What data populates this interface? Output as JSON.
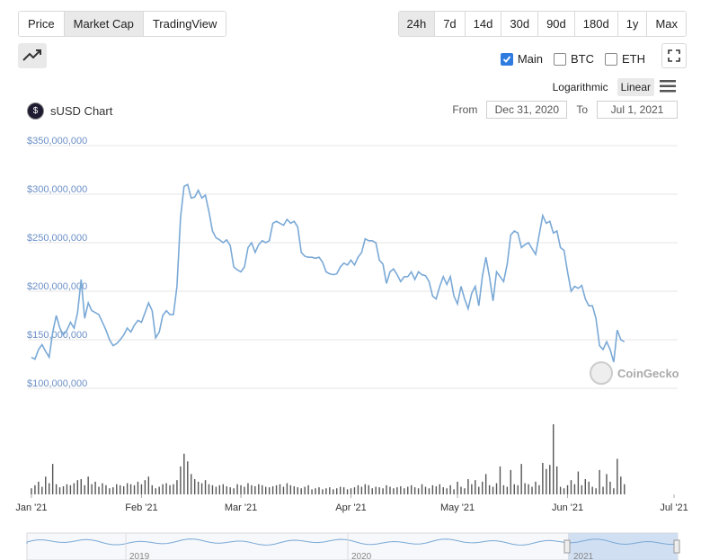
{
  "tabs": [
    "Price",
    "Market Cap",
    "TradingView"
  ],
  "active_tab": "Market Cap",
  "ranges": [
    "24h",
    "7d",
    "14d",
    "30d",
    "90d",
    "180d",
    "1y",
    "Max"
  ],
  "active_range": "24h",
  "series_toggles": [
    {
      "label": "Main",
      "checked": true
    },
    {
      "label": "BTC",
      "checked": false
    },
    {
      "label": "ETH",
      "checked": false
    }
  ],
  "scale": {
    "log": "Logarithmic",
    "linear": "Linear",
    "active": "Linear"
  },
  "chart_title": "sUSD Chart",
  "date_range": {
    "from_label": "From",
    "from": "Dec 31, 2020",
    "to_label": "To",
    "to": "Jul 1, 2021"
  },
  "watermark": "CoinGecko",
  "navigator_labels": [
    "2019",
    "2020",
    "2021"
  ],
  "icons": {
    "trend": "trend-line-icon",
    "expand": "expand-icon",
    "menu": "hamburger-menu-icon",
    "coin": "susd-coin-icon"
  },
  "colors": {
    "line": "#7aa9d6",
    "volume": "#555555",
    "axis_label": "#6b8fc7",
    "nav_selection": "#c8d8f0"
  },
  "chart_data": {
    "type": "line",
    "y_ticks": [
      "$350,000,000",
      "$300,000,000",
      "$250,000,000",
      "$200,000,000",
      "$150,000,000",
      "$100,000,000"
    ],
    "y_tick_values": [
      350000000,
      300000000,
      250000000,
      200000000,
      150000000,
      100000000
    ],
    "ylim": [
      100000000,
      350000000
    ],
    "x_ticks": [
      "Jan '21",
      "Feb '21",
      "Mar '21",
      "Apr '21",
      "May '21",
      "Jun '21",
      "Jul '21"
    ],
    "x_tick_days": [
      0,
      31,
      59,
      90,
      120,
      151,
      181
    ],
    "xlim": [
      -1,
      182
    ],
    "grid": true,
    "series": [
      {
        "values": [
          [
            0,
            132
          ],
          [
            1,
            130
          ],
          [
            2,
            140
          ],
          [
            3,
            145
          ],
          [
            4,
            138
          ],
          [
            5,
            132
          ],
          [
            6,
            158
          ],
          [
            7,
            175
          ],
          [
            8,
            162
          ],
          [
            9,
            155
          ],
          [
            10,
            160
          ],
          [
            11,
            168
          ],
          [
            12,
            162
          ],
          [
            13,
            178
          ],
          [
            14,
            212
          ],
          [
            15,
            172
          ],
          [
            16,
            188
          ],
          [
            17,
            180
          ],
          [
            18,
            178
          ],
          [
            19,
            176
          ],
          [
            20,
            168
          ],
          [
            21,
            160
          ],
          [
            22,
            150
          ],
          [
            23,
            144
          ],
          [
            24,
            146
          ],
          [
            25,
            150
          ],
          [
            26,
            155
          ],
          [
            27,
            162
          ],
          [
            28,
            158
          ],
          [
            29,
            165
          ],
          [
            30,
            170
          ],
          [
            31,
            168
          ],
          [
            32,
            178
          ],
          [
            33,
            188
          ],
          [
            34,
            180
          ],
          [
            35,
            152
          ],
          [
            36,
            158
          ],
          [
            37,
            175
          ],
          [
            38,
            180
          ],
          [
            39,
            176
          ],
          [
            40,
            176
          ],
          [
            41,
            205
          ],
          [
            42,
            276
          ],
          [
            43,
            308
          ],
          [
            44,
            310
          ],
          [
            45,
            296
          ],
          [
            46,
            297
          ],
          [
            47,
            304
          ],
          [
            48,
            296
          ],
          [
            49,
            299
          ],
          [
            50,
            282
          ],
          [
            51,
            262
          ],
          [
            52,
            255
          ],
          [
            53,
            253
          ],
          [
            54,
            250
          ],
          [
            55,
            253
          ],
          [
            56,
            247
          ],
          [
            57,
            225
          ],
          [
            58,
            222
          ],
          [
            59,
            220
          ],
          [
            60,
            225
          ],
          [
            61,
            245
          ],
          [
            62,
            250
          ],
          [
            63,
            240
          ],
          [
            64,
            248
          ],
          [
            65,
            252
          ],
          [
            66,
            250
          ],
          [
            67,
            252
          ],
          [
            68,
            270
          ],
          [
            69,
            272
          ],
          [
            70,
            270
          ],
          [
            71,
            268
          ],
          [
            72,
            274
          ],
          [
            73,
            270
          ],
          [
            74,
            272
          ],
          [
            75,
            266
          ],
          [
            76,
            240
          ],
          [
            77,
            236
          ],
          [
            78,
            235
          ],
          [
            79,
            235
          ],
          [
            80,
            234
          ],
          [
            81,
            235
          ],
          [
            82,
            230
          ],
          [
            83,
            220
          ],
          [
            84,
            218
          ],
          [
            85,
            217
          ],
          [
            86,
            218
          ],
          [
            87,
            225
          ],
          [
            88,
            229
          ],
          [
            89,
            227
          ],
          [
            90,
            232
          ],
          [
            91,
            227
          ],
          [
            92,
            235
          ],
          [
            93,
            240
          ],
          [
            94,
            254
          ],
          [
            95,
            252
          ],
          [
            96,
            252
          ],
          [
            97,
            250
          ],
          [
            98,
            232
          ],
          [
            99,
            228
          ],
          [
            100,
            208
          ],
          [
            101,
            220
          ],
          [
            102,
            223
          ],
          [
            103,
            217
          ],
          [
            104,
            210
          ],
          [
            105,
            215
          ],
          [
            106,
            215
          ],
          [
            107,
            220
          ],
          [
            108,
            212
          ],
          [
            109,
            220
          ],
          [
            110,
            217
          ],
          [
            111,
            216
          ],
          [
            112,
            210
          ],
          [
            113,
            195
          ],
          [
            114,
            192
          ],
          [
            115,
            205
          ],
          [
            116,
            215
          ],
          [
            117,
            207
          ],
          [
            118,
            215
          ],
          [
            119,
            195
          ],
          [
            120,
            187
          ],
          [
            121,
            205
          ],
          [
            122,
            192
          ],
          [
            123,
            182
          ],
          [
            124,
            198
          ],
          [
            125,
            205
          ],
          [
            126,
            185
          ],
          [
            127,
            215
          ],
          [
            128,
            235
          ],
          [
            129,
            215
          ],
          [
            130,
            190
          ],
          [
            131,
            220
          ],
          [
            132,
            215
          ],
          [
            133,
            210
          ],
          [
            134,
            228
          ],
          [
            135,
            258
          ],
          [
            136,
            262
          ],
          [
            137,
            260
          ],
          [
            138,
            245
          ],
          [
            139,
            248
          ],
          [
            140,
            250
          ],
          [
            141,
            244
          ],
          [
            142,
            238
          ],
          [
            143,
            258
          ],
          [
            144,
            278
          ],
          [
            145,
            270
          ],
          [
            146,
            272
          ],
          [
            147,
            260
          ],
          [
            148,
            262
          ],
          [
            149,
            245
          ],
          [
            150,
            242
          ],
          [
            151,
            220
          ],
          [
            152,
            200
          ],
          [
            153,
            205
          ],
          [
            154,
            203
          ],
          [
            155,
            206
          ],
          [
            156,
            192
          ],
          [
            157,
            185
          ],
          [
            158,
            185
          ],
          [
            159,
            172
          ],
          [
            160,
            144
          ],
          [
            161,
            140
          ],
          [
            162,
            148
          ],
          [
            163,
            140
          ],
          [
            164,
            127
          ],
          [
            165,
            160
          ],
          [
            166,
            150
          ],
          [
            167,
            148
          ]
        ]
      }
    ],
    "volume": [
      [
        0,
        12
      ],
      [
        1,
        18
      ],
      [
        2,
        25
      ],
      [
        3,
        15
      ],
      [
        4,
        35
      ],
      [
        5,
        22
      ],
      [
        6,
        60
      ],
      [
        7,
        20
      ],
      [
        8,
        14
      ],
      [
        9,
        16
      ],
      [
        10,
        20
      ],
      [
        11,
        18
      ],
      [
        12,
        22
      ],
      [
        13,
        28
      ],
      [
        14,
        30
      ],
      [
        15,
        18
      ],
      [
        16,
        35
      ],
      [
        17,
        20
      ],
      [
        18,
        25
      ],
      [
        19,
        15
      ],
      [
        20,
        22
      ],
      [
        21,
        18
      ],
      [
        22,
        12
      ],
      [
        23,
        14
      ],
      [
        24,
        20
      ],
      [
        25,
        18
      ],
      [
        26,
        16
      ],
      [
        27,
        22
      ],
      [
        28,
        20
      ],
      [
        29,
        18
      ],
      [
        30,
        25
      ],
      [
        31,
        20
      ],
      [
        32,
        28
      ],
      [
        33,
        35
      ],
      [
        34,
        18
      ],
      [
        35,
        12
      ],
      [
        36,
        15
      ],
      [
        37,
        20
      ],
      [
        38,
        22
      ],
      [
        39,
        18
      ],
      [
        40,
        20
      ],
      [
        41,
        28
      ],
      [
        42,
        55
      ],
      [
        43,
        80
      ],
      [
        44,
        65
      ],
      [
        45,
        40
      ],
      [
        46,
        30
      ],
      [
        47,
        25
      ],
      [
        48,
        22
      ],
      [
        49,
        28
      ],
      [
        50,
        20
      ],
      [
        51,
        18
      ],
      [
        52,
        15
      ],
      [
        53,
        18
      ],
      [
        54,
        20
      ],
      [
        55,
        16
      ],
      [
        56,
        14
      ],
      [
        57,
        12
      ],
      [
        58,
        20
      ],
      [
        59,
        18
      ],
      [
        60,
        15
      ],
      [
        61,
        22
      ],
      [
        62,
        18
      ],
      [
        63,
        16
      ],
      [
        64,
        20
      ],
      [
        65,
        18
      ],
      [
        66,
        15
      ],
      [
        67,
        14
      ],
      [
        68,
        16
      ],
      [
        69,
        18
      ],
      [
        70,
        20
      ],
      [
        71,
        15
      ],
      [
        72,
        22
      ],
      [
        73,
        18
      ],
      [
        74,
        16
      ],
      [
        75,
        14
      ],
      [
        76,
        12
      ],
      [
        77,
        15
      ],
      [
        78,
        18
      ],
      [
        79,
        10
      ],
      [
        80,
        12
      ],
      [
        81,
        14
      ],
      [
        82,
        10
      ],
      [
        83,
        12
      ],
      [
        84,
        14
      ],
      [
        85,
        10
      ],
      [
        86,
        12
      ],
      [
        87,
        15
      ],
      [
        88,
        14
      ],
      [
        89,
        10
      ],
      [
        90,
        12
      ],
      [
        91,
        14
      ],
      [
        92,
        18
      ],
      [
        93,
        15
      ],
      [
        94,
        20
      ],
      [
        95,
        18
      ],
      [
        96,
        12
      ],
      [
        97,
        15
      ],
      [
        98,
        14
      ],
      [
        99,
        12
      ],
      [
        100,
        18
      ],
      [
        101,
        15
      ],
      [
        102,
        12
      ],
      [
        103,
        14
      ],
      [
        104,
        16
      ],
      [
        105,
        12
      ],
      [
        106,
        15
      ],
      [
        107,
        18
      ],
      [
        108,
        14
      ],
      [
        109,
        12
      ],
      [
        110,
        20
      ],
      [
        111,
        15
      ],
      [
        112,
        12
      ],
      [
        113,
        18
      ],
      [
        114,
        16
      ],
      [
        115,
        20
      ],
      [
        116,
        14
      ],
      [
        117,
        12
      ],
      [
        118,
        18
      ],
      [
        119,
        10
      ],
      [
        120,
        25
      ],
      [
        121,
        15
      ],
      [
        122,
        12
      ],
      [
        123,
        30
      ],
      [
        124,
        20
      ],
      [
        125,
        28
      ],
      [
        126,
        15
      ],
      [
        127,
        25
      ],
      [
        128,
        40
      ],
      [
        129,
        18
      ],
      [
        130,
        15
      ],
      [
        131,
        22
      ],
      [
        132,
        55
      ],
      [
        133,
        18
      ],
      [
        134,
        15
      ],
      [
        135,
        48
      ],
      [
        136,
        20
      ],
      [
        137,
        18
      ],
      [
        138,
        60
      ],
      [
        139,
        22
      ],
      [
        140,
        20
      ],
      [
        141,
        15
      ],
      [
        142,
        25
      ],
      [
        143,
        18
      ],
      [
        144,
        62
      ],
      [
        145,
        50
      ],
      [
        146,
        58
      ],
      [
        147,
        138
      ],
      [
        148,
        55
      ],
      [
        149,
        15
      ],
      [
        150,
        12
      ],
      [
        151,
        18
      ],
      [
        152,
        28
      ],
      [
        153,
        20
      ],
      [
        154,
        45
      ],
      [
        155,
        18
      ],
      [
        156,
        30
      ],
      [
        157,
        25
      ],
      [
        158,
        15
      ],
      [
        159,
        12
      ],
      [
        160,
        48
      ],
      [
        161,
        15
      ],
      [
        162,
        40
      ],
      [
        163,
        25
      ],
      [
        164,
        12
      ],
      [
        165,
        70
      ],
      [
        166,
        35
      ],
      [
        167,
        20
      ]
    ]
  }
}
